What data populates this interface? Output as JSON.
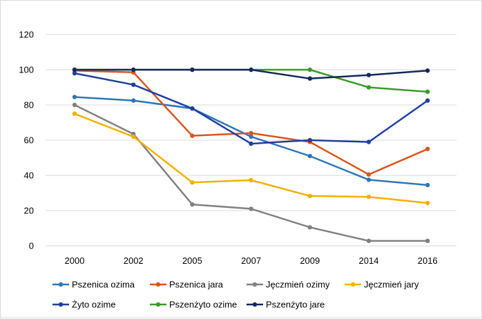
{
  "chart_data": {
    "type": "line",
    "categories": [
      "2000",
      "2002",
      "2005",
      "2007",
      "2009",
      "2014",
      "2016"
    ],
    "ylim": [
      0,
      120
    ],
    "yticks": [
      0,
      20,
      40,
      60,
      80,
      100,
      120
    ],
    "grid": true,
    "legend_position": "bottom",
    "series": [
      {
        "name": "Pszenica ozima",
        "color": "#2E75B6",
        "values": [
          84.5,
          82.5,
          78,
          62,
          51,
          37.5,
          34.5
        ]
      },
      {
        "name": "Pszenica jara",
        "color": "#D9541E",
        "values": [
          99.5,
          98.5,
          62.5,
          64,
          59,
          40.5,
          55
        ]
      },
      {
        "name": "Jęczmień ozimy",
        "color": "#808080",
        "values": [
          80,
          63.5,
          23.5,
          21,
          10.5,
          2.8,
          2.8
        ]
      },
      {
        "name": "Jęczmień jary",
        "color": "#F2B000",
        "values": [
          75,
          62,
          36,
          37.3,
          28.3,
          27.8,
          24.3
        ]
      },
      {
        "name": "Żyto ozime",
        "color": "#1F3F9F",
        "values": [
          98,
          91.5,
          78,
          58,
          60,
          59,
          82.5
        ]
      },
      {
        "name": "Pszenżyto ozime",
        "color": "#3A9A2A",
        "values": [
          100,
          100,
          100,
          100,
          100,
          90,
          87.5
        ]
      },
      {
        "name": "Pszenżyto jare",
        "color": "#14275C",
        "values": [
          100,
          100,
          100,
          100,
          95,
          97,
          99.5
        ]
      }
    ]
  }
}
